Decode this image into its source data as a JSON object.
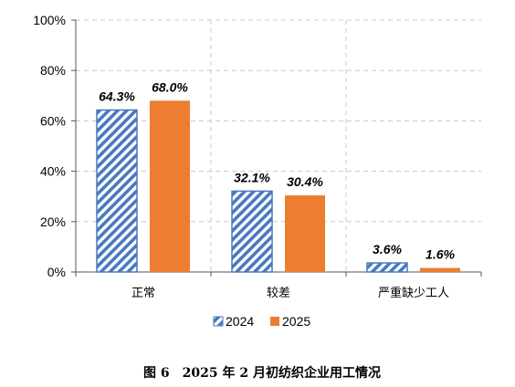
{
  "chart_data": {
    "type": "bar",
    "categories": [
      "正常",
      "较差",
      "严重缺少工人"
    ],
    "series": [
      {
        "name": "2024",
        "values": [
          64.3,
          32.1,
          3.6
        ],
        "labels": [
          "64.3%",
          "32.1%",
          "3.6%"
        ],
        "color": "#4a78c0",
        "pattern": "diagonal-hatch"
      },
      {
        "name": "2025",
        "values": [
          68.0,
          30.4,
          1.6
        ],
        "labels": [
          "68.0%",
          "30.4%",
          "1.6%"
        ],
        "color": "#ed7d31",
        "pattern": "solid"
      }
    ],
    "yticks": [
      {
        "value": 0,
        "label": "0%"
      },
      {
        "value": 20,
        "label": "20%"
      },
      {
        "value": 40,
        "label": "40%"
      },
      {
        "value": 60,
        "label": "60%"
      },
      {
        "value": 80,
        "label": "80%"
      },
      {
        "value": 100,
        "label": "100%"
      }
    ],
    "ylim": [
      0,
      100
    ],
    "grid": true,
    "grid_style": "dashed",
    "legend_position": "bottom",
    "title": "",
    "xlabel": "",
    "ylabel": ""
  },
  "caption": "图 6　2025 年 2 月初纺织企业用工情况"
}
